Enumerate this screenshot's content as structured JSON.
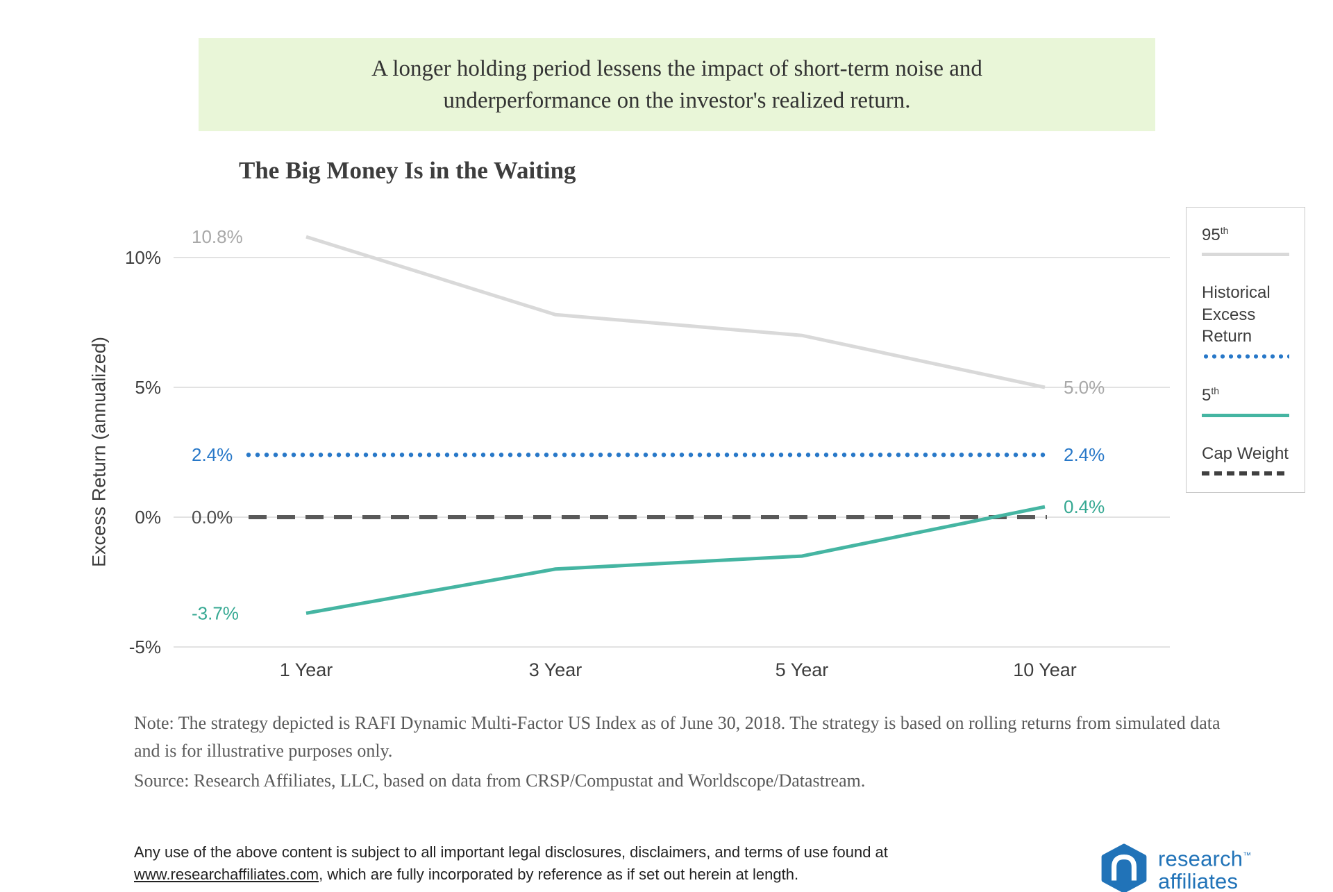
{
  "banner": {
    "line1": "A longer holding period lessens the impact of short-term noise and",
    "line2": "underperformance on the investor's realized return."
  },
  "chart": {
    "title": "The Big Money Is in the Waiting"
  },
  "chart_data": {
    "type": "line",
    "title": "The Big Money Is in the Waiting",
    "xlabel": "",
    "ylabel": "Excess Return (annualized)",
    "categories": [
      "1 Year",
      "3 Year",
      "5 Year",
      "10 Year"
    ],
    "series": [
      {
        "name": "95th",
        "role": "series",
        "style": "solid",
        "color": "#d9d9d9",
        "label_color": "#a8a8a8",
        "values": [
          10.8,
          7.8,
          7.0,
          5.0
        ],
        "labels": {
          "start": "10.8%",
          "end": "5.0%"
        }
      },
      {
        "name": "Historical Excess Return",
        "role": "reference",
        "style": "dotted",
        "color": "#2878c8",
        "label_color": "#2878c8",
        "values": [
          2.4,
          2.4,
          2.4,
          2.4
        ],
        "labels": {
          "start": "2.4%",
          "end": "2.4%"
        }
      },
      {
        "name": "Cap Weight",
        "role": "reference",
        "style": "dashed",
        "color": "#595959",
        "label_color": "#4d4d4d",
        "values": [
          0.0,
          0.0,
          0.0,
          0.0
        ],
        "labels": {
          "start": "0.0%"
        }
      },
      {
        "name": "5th",
        "role": "series",
        "style": "solid",
        "color": "#45b5a2",
        "label_color": "#35a892",
        "values": [
          -3.7,
          -2.0,
          -1.5,
          0.4
        ],
        "labels": {
          "start": "-3.7%",
          "end": "0.4%"
        }
      }
    ],
    "y_ticks": [
      {
        "value": 10,
        "label": "10%"
      },
      {
        "value": 5,
        "label": "5%"
      },
      {
        "value": 0,
        "label": "0%"
      },
      {
        "value": -5,
        "label": "-5%"
      }
    ],
    "ylim": [
      -5.8,
      11.6
    ],
    "grid": true,
    "legend_position": "right"
  },
  "legend": {
    "items": [
      {
        "base": "95",
        "sup": "th",
        "line": "gray-solid"
      },
      {
        "base": "Historical Excess Return",
        "sup": "",
        "line": "blue-dotted"
      },
      {
        "base": "5",
        "sup": "th",
        "line": "teal-solid"
      },
      {
        "base": "Cap Weight",
        "sup": "",
        "line": "dark-dashed"
      }
    ]
  },
  "notes": {
    "note_line": "Note: The strategy depicted is RAFI Dynamic Multi-Factor US Index as of June 30, 2018. The strategy is based on rolling returns from simulated data and is for illustrative purposes only.",
    "source_line": "Source: Research Affiliates, LLC, based on data from CRSP/Compustat and Worldscope/Datastream."
  },
  "footer": {
    "line1": "Any use of the above content is subject to all important legal disclosures, disclaimers, and terms of use found at",
    "link": "www.researchaffiliates.com",
    "line2_rest": ", which are fully incorporated by reference as if set out herein at length."
  },
  "logo": {
    "line1": "research",
    "tm": "™",
    "line2": "affiliates"
  },
  "colors": {
    "banner_bg": "#e9f6d8",
    "accent_blue": "#2878c8",
    "accent_teal": "#45b5a2",
    "gray_series": "#d9d9d9",
    "cap_weight": "#595959",
    "logo_blue": "#2173b8"
  }
}
